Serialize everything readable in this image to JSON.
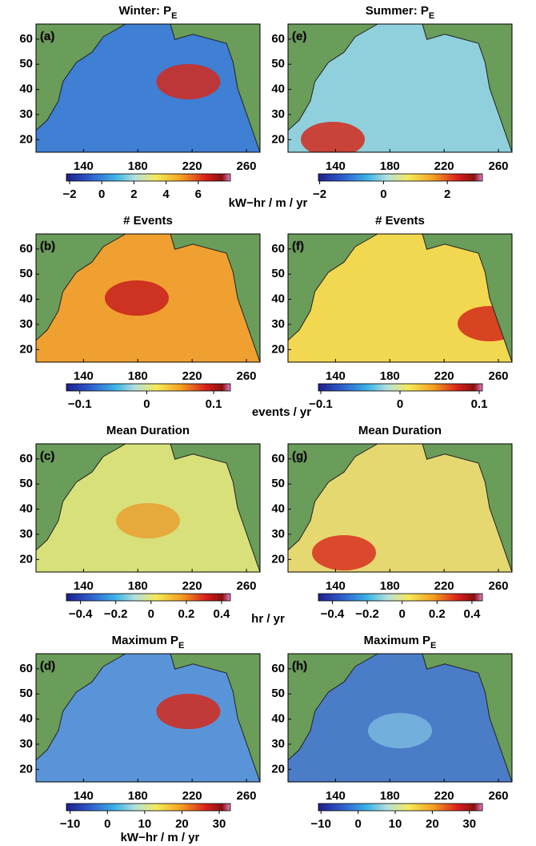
{
  "panels": [
    {
      "letter": "(a)",
      "title": "Winter:  P",
      "title_sub": "E",
      "xlim": [
        105,
        270
      ],
      "ylim": [
        15,
        66
      ],
      "xticks": [
        140,
        180,
        220,
        260
      ],
      "yticks": [
        20,
        30,
        40,
        50,
        60
      ],
      "clim": [
        -2.2,
        8
      ],
      "cticks": [
        {
          "value": -2,
          "label": "−2"
        },
        0,
        2,
        4,
        6
      ]
    },
    {
      "letter": "(e)",
      "title": "Summer:  P",
      "title_sub": "E",
      "xlim": [
        105,
        270
      ],
      "ylim": [
        15,
        66
      ],
      "xticks": [
        140,
        180,
        220,
        260
      ],
      "yticks": [
        20,
        30,
        40,
        50,
        60
      ],
      "clim": [
        -2.04,
        3.1
      ],
      "cticks": [
        {
          "value": -2,
          "label": "−2"
        },
        0,
        2
      ]
    },
    {
      "letter": "(b)",
      "title": "#  Events",
      "xlim": [
        105,
        270
      ],
      "ylim": [
        15,
        66
      ],
      "xticks": [
        140,
        180,
        220,
        260
      ],
      "yticks": [
        20,
        30,
        40,
        50,
        60
      ],
      "clim": [
        -0.12,
        0.125
      ],
      "cticks": [
        {
          "value": -0.1,
          "label": "−0.1"
        },
        0,
        0.1
      ]
    },
    {
      "letter": "(f)",
      "title": "#  Events",
      "xlim": [
        105,
        270
      ],
      "ylim": [
        15,
        66
      ],
      "xticks": [
        140,
        180,
        220,
        260
      ],
      "yticks": [
        20,
        30,
        40,
        50,
        60
      ],
      "clim": [
        -0.103,
        0.104
      ],
      "cticks": [
        {
          "value": -0.1,
          "label": "−0.1"
        },
        0,
        0.1
      ]
    },
    {
      "letter": "(c)",
      "title": "Mean  Duration",
      "xlim": [
        105,
        270
      ],
      "ylim": [
        15,
        66
      ],
      "xticks": [
        140,
        180,
        220,
        260
      ],
      "yticks": [
        20,
        30,
        40,
        50,
        60
      ],
      "clim": [
        -0.48,
        0.45
      ],
      "cticks": [
        {
          "value": -0.4,
          "label": "−0.4"
        },
        {
          "value": -0.2,
          "label": "−0.2"
        },
        0,
        0.2,
        0.4
      ]
    },
    {
      "letter": "(g)",
      "title": "Mean  Duration",
      "xlim": [
        105,
        270
      ],
      "ylim": [
        15,
        66
      ],
      "xticks": [
        140,
        180,
        220,
        260
      ],
      "yticks": [
        20,
        30,
        40,
        50,
        60
      ],
      "clim": [
        -0.48,
        0.46
      ],
      "cticks": [
        {
          "value": -0.4,
          "label": "−0.4"
        },
        {
          "value": -0.2,
          "label": "−0.2"
        },
        0,
        0.2,
        0.4
      ]
    },
    {
      "letter": "(d)",
      "title": "Maximum  P",
      "title_sub": "E",
      "xlim": [
        105,
        270
      ],
      "ylim": [
        15,
        66
      ],
      "xticks": [
        140,
        180,
        220,
        260
      ],
      "yticks": [
        20,
        30,
        40,
        50,
        60
      ],
      "clim": [
        -11,
        33
      ],
      "cticks": [
        {
          "value": -10,
          "label": "−10"
        },
        0,
        10,
        20,
        30
      ]
    },
    {
      "letter": "(h)",
      "title": "Maximum  P",
      "title_sub": "E",
      "xlim": [
        105,
        270
      ],
      "ylim": [
        15,
        66
      ],
      "xticks": [
        140,
        180,
        220,
        260
      ],
      "yticks": [
        20,
        30,
        40,
        50,
        60
      ],
      "clim": [
        -10.7,
        33.5
      ],
      "cticks": [
        {
          "value": -10,
          "label": "−10"
        },
        0,
        10,
        20,
        30
      ]
    }
  ],
  "colorbar_units": [
    "kW−hr / m / yr",
    "events / yr",
    "hr / yr",
    "kW−hr / m / yr"
  ]
}
